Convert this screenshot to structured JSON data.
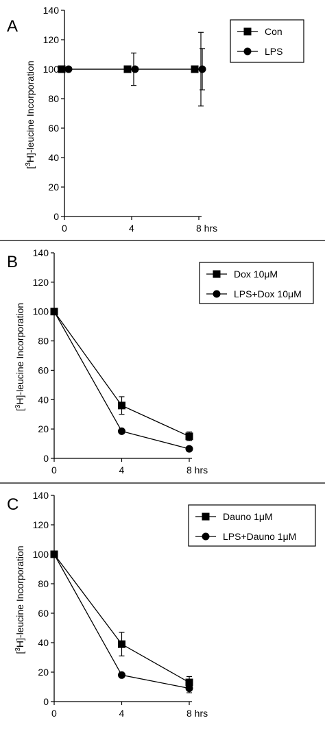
{
  "chart_data": [
    {
      "panel": "A",
      "type": "line",
      "ylabel_prefix": "[",
      "ylabel_sup": "3",
      "ylabel_rest": "H]-leucine Incorporation",
      "categories": [
        "0",
        "4",
        "8 hrs"
      ],
      "x": [
        0,
        4,
        8
      ],
      "yticks": [
        "0",
        "20",
        "40",
        "60",
        "80",
        "100",
        "120",
        "140"
      ],
      "ylim": [
        0,
        140
      ],
      "legend": "top-right",
      "series": [
        {
          "name": "Con",
          "marker": "square",
          "values": [
            100,
            100,
            100
          ],
          "err": [
            0,
            11,
            25
          ]
        },
        {
          "name": "LPS",
          "marker": "circle",
          "values": [
            100,
            100,
            100
          ],
          "err": [
            0,
            0,
            14
          ]
        }
      ]
    },
    {
      "panel": "B",
      "type": "line",
      "ylabel_prefix": "[",
      "ylabel_sup": "3",
      "ylabel_rest": "H]-leucine Incorporation",
      "categories": [
        "0",
        "4",
        "8 hrs"
      ],
      "x": [
        0,
        4,
        8
      ],
      "yticks": [
        "0",
        "20",
        "40",
        "60",
        "80",
        "100",
        "120",
        "140"
      ],
      "ylim": [
        0,
        140
      ],
      "legend": "top-right",
      "series": [
        {
          "name": "Dox 10μM",
          "marker": "square",
          "values": [
            100,
            36,
            15
          ],
          "err": [
            0,
            6,
            3
          ]
        },
        {
          "name": "LPS+Dox 10μM",
          "marker": "circle",
          "values": [
            100,
            18.5,
            6.5
          ],
          "err": [
            0,
            1.5,
            1
          ]
        }
      ]
    },
    {
      "panel": "C",
      "type": "line",
      "ylabel_prefix": "[",
      "ylabel_sup": "3",
      "ylabel_rest": "H]-leucine Incorporation",
      "categories": [
        "0",
        "4",
        "8 hrs"
      ],
      "x": [
        0,
        4,
        8
      ],
      "yticks": [
        "0",
        "20",
        "40",
        "60",
        "80",
        "100",
        "120",
        "140"
      ],
      "ylim": [
        0,
        140
      ],
      "legend": "top-right",
      "series": [
        {
          "name": "Dauno 1μM",
          "marker": "square",
          "values": [
            100,
            39,
            13
          ],
          "err": [
            0,
            8,
            4
          ]
        },
        {
          "name": "LPS+Dauno 1μM",
          "marker": "circle",
          "values": [
            100,
            18,
            9
          ],
          "err": [
            0,
            0,
            3
          ]
        }
      ]
    }
  ]
}
